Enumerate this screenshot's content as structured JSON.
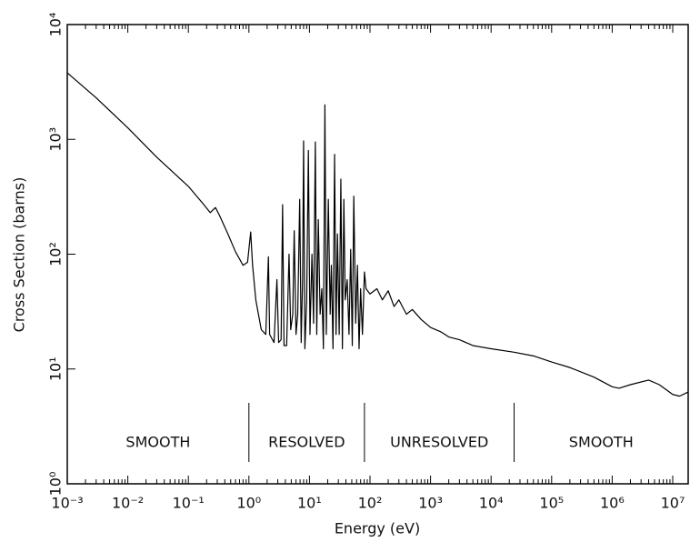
{
  "chart_data": {
    "type": "line",
    "log_x": true,
    "log_y": true,
    "color": "#000000",
    "xlabel": "Energy (eV)",
    "ylabel": "Cross Section (barns)",
    "x": [
      0.001,
      0.003,
      0.01,
      0.03,
      0.1,
      0.18,
      0.23,
      0.28,
      0.33,
      0.45,
      0.6,
      0.8,
      0.95,
      1.07,
      1.15,
      1.3,
      1.6,
      1.9,
      2.1,
      2.2,
      2.6,
      2.9,
      3.1,
      3.4,
      3.6,
      3.8,
      4.2,
      4.6,
      4.9,
      5.3,
      5.6,
      6.0,
      6.4,
      6.9,
      7.3,
      7.7,
      8.0,
      8.4,
      9.0,
      9.6,
      10.2,
      11,
      11.7,
      12.5,
      13.2,
      14,
      15,
      16,
      17,
      18,
      19,
      20.5,
      22,
      23,
      24.5,
      26,
      27.5,
      29,
      31,
      33,
      35,
      37,
      39,
      42,
      45,
      48,
      51,
      54,
      58,
      62,
      66,
      70,
      75,
      81,
      86,
      100,
      130,
      160,
      200,
      250,
      300,
      400,
      500,
      700,
      1000,
      1500,
      2000,
      3000,
      5000,
      10000,
      24000,
      50000,
      100000,
      200000,
      500000,
      1000000,
      1300000,
      2000000,
      4000000,
      6000000,
      10000000,
      13000000,
      18000000
    ],
    "values": [
      3800,
      2300,
      1260,
      700,
      390,
      270,
      230,
      255,
      215,
      150,
      105,
      80,
      85,
      156,
      80,
      40,
      22,
      20,
      95,
      20,
      17,
      60,
      17,
      18,
      270,
      16,
      16,
      100,
      22,
      30,
      160,
      20,
      30,
      300,
      17,
      60,
      970,
      15,
      40,
      800,
      20,
      100,
      25,
      950,
      20,
      200,
      30,
      50,
      15,
      2000,
      20,
      300,
      30,
      80,
      15,
      740,
      20,
      150,
      20,
      450,
      15,
      300,
      40,
      60,
      20,
      110,
      16,
      320,
      25,
      80,
      15,
      50,
      20,
      70,
      50,
      45,
      50,
      40,
      48,
      35,
      40,
      30,
      33,
      27,
      23,
      21,
      19,
      18,
      16,
      15,
      14,
      13,
      11.5,
      10.3,
      8.5,
      7.0,
      6.8,
      7.3,
      8.0,
      7.3,
      6.0,
      5.8,
      6.3
    ],
    "xlim": [
      0.001,
      18000000
    ],
    "ylim": [
      1,
      10000
    ],
    "xticks": [
      {
        "value": 0.001,
        "label": "10⁻³"
      },
      {
        "value": 0.01,
        "label": "10⁻²"
      },
      {
        "value": 0.1,
        "label": "10⁻¹"
      },
      {
        "value": 1,
        "label": "10⁰"
      },
      {
        "value": 10,
        "label": "10¹"
      },
      {
        "value": 100,
        "label": "10²"
      },
      {
        "value": 1000,
        "label": "10³"
      },
      {
        "value": 10000,
        "label": "10⁴"
      },
      {
        "value": 100000,
        "label": "10⁵"
      },
      {
        "value": 1000000,
        "label": "10⁶"
      },
      {
        "value": 10000000,
        "label": "10⁷"
      }
    ],
    "yticks": [
      {
        "value": 1,
        "label": "10⁰"
      },
      {
        "value": 10,
        "label": "10¹"
      },
      {
        "value": 100,
        "label": "10²"
      },
      {
        "value": 1000,
        "label": "10³"
      },
      {
        "value": 10000,
        "label": "10⁴"
      }
    ],
    "regions": [
      "SMOOTH",
      "RESOLVED",
      "UNRESOLVED",
      "SMOOTH"
    ],
    "region_bounds": [
      1,
      81,
      24000
    ]
  }
}
